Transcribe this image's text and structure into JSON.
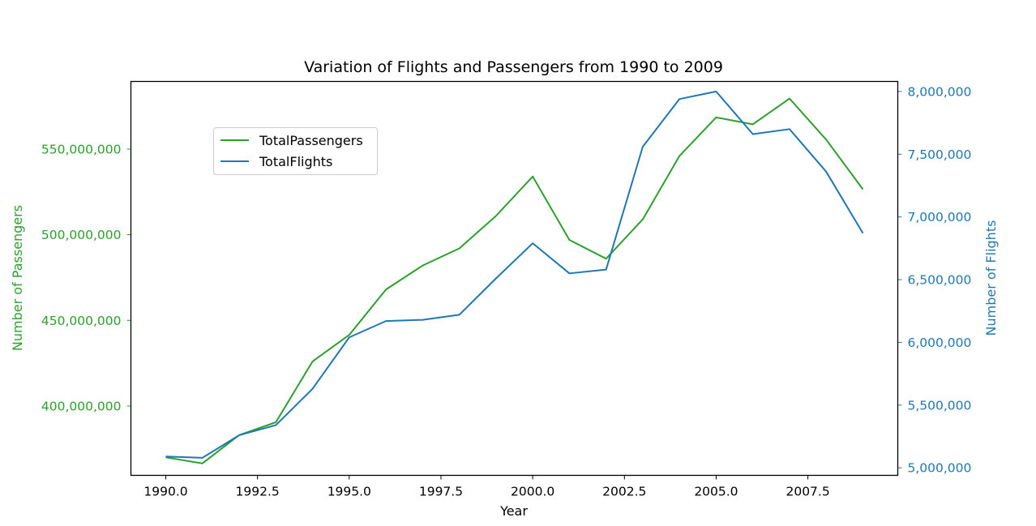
{
  "chart_data": {
    "type": "line",
    "title": "Variation of Flights and Passengers from 1990 to 2009",
    "xlabel": "Year",
    "ylabel_left": "Number of Passengers",
    "ylabel_right": "Number of Flights",
    "x": [
      1990,
      1991,
      1992,
      1993,
      1994,
      1995,
      1996,
      1997,
      1998,
      1999,
      2000,
      2001,
      2002,
      2003,
      2004,
      2005,
      2006,
      2007,
      2008,
      2009
    ],
    "xlim": [
      1989.05,
      2009.95
    ],
    "x_ticks": [
      1990.0,
      1992.5,
      1995.0,
      1997.5,
      2000.0,
      2002.5,
      2005.0,
      2007.5
    ],
    "x_tick_labels": [
      "1990.0",
      "1992.5",
      "1995.0",
      "1997.5",
      "2000.0",
      "2002.5",
      "2005.0",
      "2007.5"
    ],
    "ylim_left": [
      359500000,
      589500000
    ],
    "y_ticks_left": [
      400000000,
      450000000,
      500000000,
      550000000
    ],
    "y_tick_labels_left": [
      "400,000,000",
      "450,000,000",
      "500,000,000",
      "550,000,000"
    ],
    "ylim_right": [
      4940000,
      8080000
    ],
    "y_ticks_right": [
      5000000,
      5500000,
      6000000,
      6500000,
      7000000,
      7500000,
      8000000
    ],
    "y_tick_labels_right": [
      "5,000,000",
      "5,500,000",
      "6,000,000",
      "6,500,000",
      "7,000,000",
      "7,500,000",
      "8,000,000"
    ],
    "legend_position": "upper left",
    "series": [
      {
        "name": "TotalPassengers",
        "axis": "left",
        "color": "#2ca02c",
        "values": [
          370000000,
          366500000,
          383000000,
          390500000,
          426000000,
          441500000,
          468000000,
          482000000,
          492000000,
          511000000,
          534000000,
          497000000,
          486000000,
          509000000,
          546000000,
          568500000,
          564500000,
          579500000,
          555500000,
          526500000
        ]
      },
      {
        "name": "TotalFlights",
        "axis": "right",
        "color": "#1f77b4",
        "values": [
          5090000,
          5080000,
          5260000,
          5340000,
          5630000,
          6040000,
          6170000,
          6180000,
          6220000,
          6510000,
          6790000,
          6550000,
          6580000,
          7560000,
          7940000,
          8000000,
          7660000,
          7700000,
          7360000,
          6870000
        ]
      }
    ]
  }
}
